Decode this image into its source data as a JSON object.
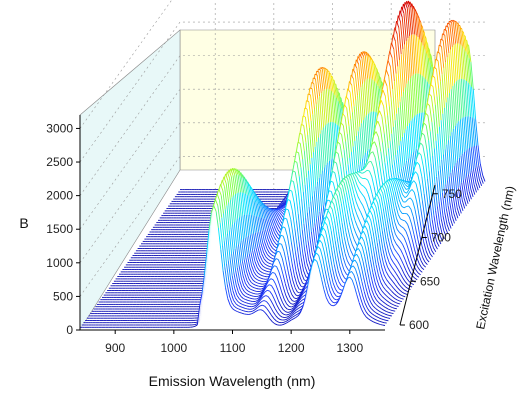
{
  "chart_data": {
    "type": "waterfall-3d",
    "title": "",
    "xlabel": "Emission Wavelength (nm)",
    "ylabel": "Excitation Wavelength (nm)",
    "zlabel": "B",
    "xlim": [
      840,
      1360
    ],
    "ylim": [
      600,
      760
    ],
    "zlim": [
      0,
      3200
    ],
    "x_ticks": [
      "900",
      "1000",
      "1100",
      "1200",
      "1300"
    ],
    "y_ticks": [
      "600",
      "650",
      "700",
      "750"
    ],
    "z_ticks": [
      "0",
      "500",
      "1000",
      "1500",
      "2000",
      "2500",
      "3000"
    ],
    "colormap": [
      "#0a0ab0",
      "#1e3cff",
      "#00a0ff",
      "#00e5ff",
      "#7cff40",
      "#ffe600",
      "#ff6000",
      "#d40000"
    ],
    "back_wall_color": "#ffffe4",
    "side_wall_color": "#e8f8f8",
    "grid": true,
    "peaks": [
      {
        "emission": 1068,
        "excitation_center": 620,
        "height": 1800
      },
      {
        "emission": 1150,
        "excitation_center": 690,
        "height": 2600
      },
      {
        "emission": 1205,
        "excitation_center": 705,
        "height": 2650
      },
      {
        "emission": 1265,
        "excitation_center": 720,
        "height": 3000
      },
      {
        "emission": 1330,
        "excitation_center": 730,
        "height": 2750
      },
      {
        "emission": 1240,
        "excitation_center": 640,
        "height": 1400
      },
      {
        "emission": 1300,
        "excitation_center": 650,
        "height": 1200
      }
    ]
  }
}
